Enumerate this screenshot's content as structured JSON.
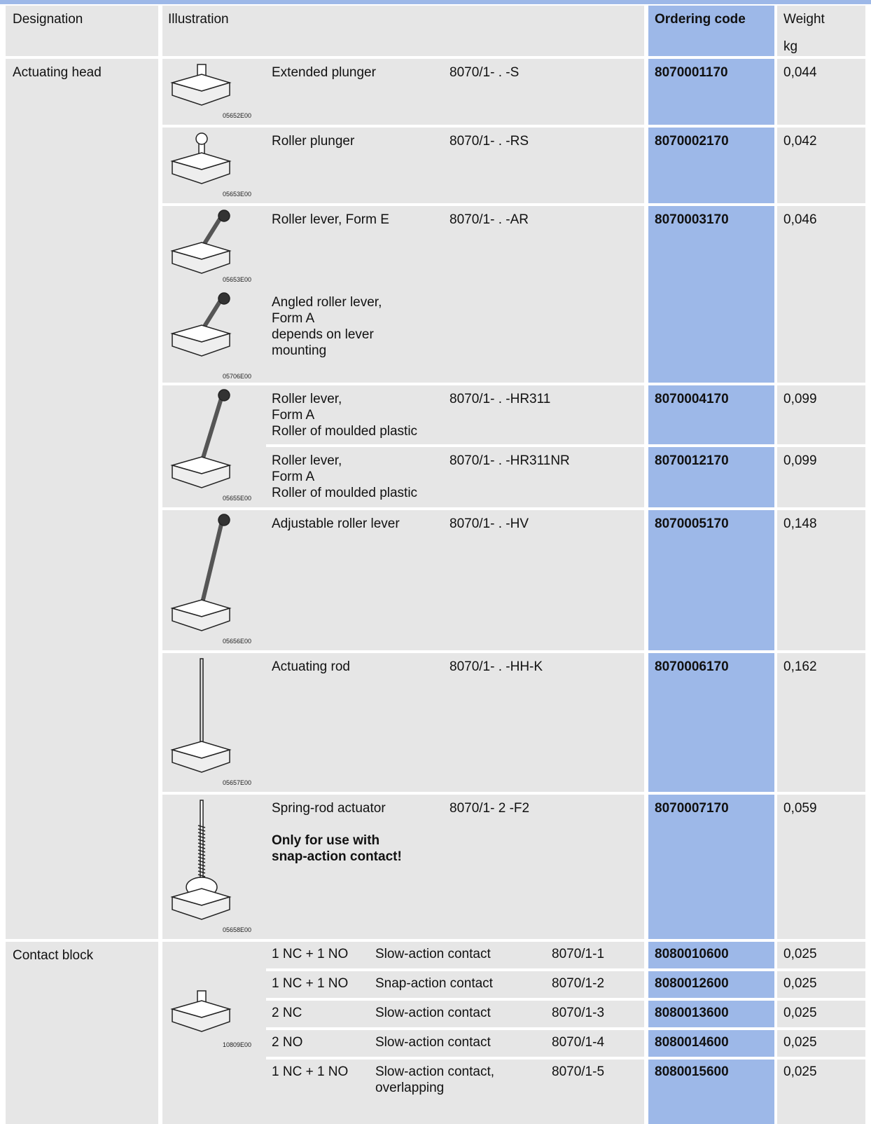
{
  "header": {
    "designation": "Designation",
    "illustration": "Illustration",
    "ordering_code": "Ordering code",
    "weight": "Weight",
    "weight_unit": "kg"
  },
  "actuating_head": {
    "designation": "Actuating head",
    "rows": [
      {
        "image": "05652E00",
        "description": "Extended plunger",
        "type": "8070/1- . -S",
        "ordering_code": "8070001170",
        "weight": "0,044"
      },
      {
        "image": "05653E00",
        "description": "Roller plunger",
        "type": "8070/1- . -RS",
        "ordering_code": "8070002170",
        "weight": "0,042"
      },
      {
        "image": "05653E00",
        "description": "Roller lever, Form E",
        "type": "8070/1- . -AR",
        "ordering_code": "8070003170",
        "weight": "0,046",
        "image_2": "05706E00",
        "note": "Angled roller lever,\nForm A\ndepends on lever\nmounting"
      },
      {
        "image": "05655E00",
        "description": "Roller lever,\nForm A\nRoller of moulded plastic",
        "type": "8070/1- . -HR311",
        "ordering_code": "8070004170",
        "weight": "0,099"
      },
      {
        "description": "Roller lever,\nForm A\nRoller of moulded plastic",
        "type": "8070/1- . -HR311NR",
        "ordering_code": "8070012170",
        "weight": "0,099"
      },
      {
        "image": "05656E00",
        "description": "Adjustable roller lever",
        "type": "8070/1- . -HV",
        "ordering_code": "8070005170",
        "weight": "0,148"
      },
      {
        "image": "05657E00",
        "description": "Actuating rod",
        "type": "8070/1- . -HH-K",
        "ordering_code": "8070006170",
        "weight": "0,162"
      },
      {
        "image": "05658E00",
        "description": "Spring-rod actuator",
        "type": "8070/1- 2 -F2",
        "ordering_code": "8070007170",
        "weight": "0,059",
        "warning": "Only for use with\nsnap-action contact!"
      }
    ]
  },
  "contact_block": {
    "designation": "Contact block",
    "image": "10809E00",
    "rows": [
      {
        "contacts": "1 NC + 1 NO",
        "description": "Slow-action contact",
        "type": "8070/1-1",
        "ordering_code": "8080010600",
        "weight": "0,025"
      },
      {
        "contacts": "1 NC + 1 NO",
        "description": "Snap-action contact",
        "type": "8070/1-2",
        "ordering_code": "8080012600",
        "weight": "0,025"
      },
      {
        "contacts": "2 NC",
        "description": "Slow-action contact",
        "type": "8070/1-3",
        "ordering_code": "8080013600",
        "weight": "0,025"
      },
      {
        "contacts": "2 NO",
        "description": "Slow-action contact",
        "type": "8070/1-4",
        "ordering_code": "8080014600",
        "weight": "0,025"
      },
      {
        "contacts": "1 NC + 1 NO",
        "description": "Slow-action contact,\noverlapping",
        "type": "8070/1-5",
        "ordering_code": "8080015600",
        "weight": "0,025"
      }
    ]
  }
}
